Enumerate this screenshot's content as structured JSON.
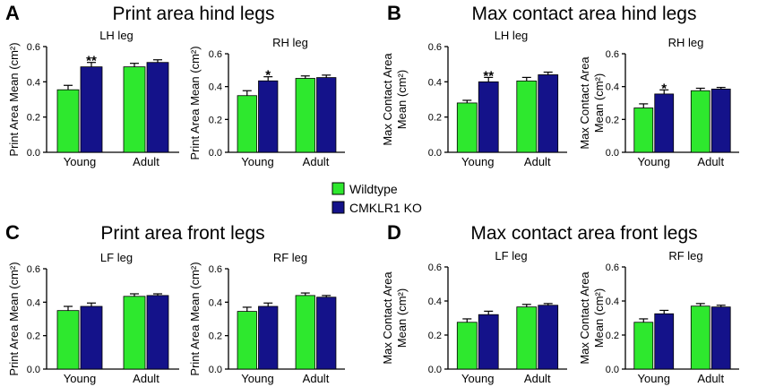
{
  "colors": {
    "wildtype": "#2EE82E",
    "ko": "#14128A"
  },
  "legend": [
    {
      "name": "Wildtype",
      "color": "#2EE82E"
    },
    {
      "name": "CMKLR1 KO",
      "color": "#14128A"
    }
  ],
  "panels": [
    {
      "letter": "A",
      "title": "Print area hind legs"
    },
    {
      "letter": "B",
      "title": "Max contact area hind legs"
    },
    {
      "letter": "C",
      "title": "Print area front legs"
    },
    {
      "letter": "D",
      "title": "Max contact area front legs"
    }
  ],
  "chart_data": [
    {
      "type": "bar",
      "panel": "A",
      "title": "LH leg",
      "ylabel": [
        "Print Area Mean (cm²)"
      ],
      "categories": [
        "Young",
        "Adult"
      ],
      "ylim": [
        0,
        0.6
      ],
      "yticks": [
        "0.0",
        "0.2",
        "0.4",
        "0.6"
      ],
      "series": [
        {
          "name": "Wildtype",
          "values": [
            0.355,
            0.485
          ],
          "errors": [
            0.025,
            0.02
          ]
        },
        {
          "name": "CMKLR1 KO",
          "values": [
            0.485,
            0.51
          ],
          "errors": [
            0.025,
            0.015
          ]
        }
      ],
      "annotations": [
        {
          "category": "Young",
          "series": "CMKLR1 KO",
          "text": "**"
        }
      ]
    },
    {
      "type": "bar",
      "panel": "A",
      "title": "RH leg",
      "ylabel": [
        "Print Area Mean (cm²)"
      ],
      "categories": [
        "Young",
        "Adult"
      ],
      "ylim": [
        0,
        0.6
      ],
      "yticks": [
        "0.0",
        "0.2",
        "0.4",
        "0.6"
      ],
      "series": [
        {
          "name": "Wildtype",
          "values": [
            0.345,
            0.45
          ],
          "errors": [
            0.03,
            0.015
          ]
        },
        {
          "name": "CMKLR1 KO",
          "values": [
            0.435,
            0.455
          ],
          "errors": [
            0.025,
            0.015
          ]
        }
      ],
      "annotations": [
        {
          "category": "Young",
          "series": "CMKLR1 KO",
          "text": "*"
        }
      ]
    },
    {
      "type": "bar",
      "panel": "B",
      "title": "LH leg",
      "ylabel": [
        "Max Contact Area",
        "Mean (cm²)"
      ],
      "categories": [
        "Young",
        "Adult"
      ],
      "ylim": [
        0,
        0.6
      ],
      "yticks": [
        "0.0",
        "0.2",
        "0.4",
        "0.6"
      ],
      "series": [
        {
          "name": "Wildtype",
          "values": [
            0.28,
            0.405
          ],
          "errors": [
            0.015,
            0.02
          ]
        },
        {
          "name": "CMKLR1 KO",
          "values": [
            0.4,
            0.44
          ],
          "errors": [
            0.025,
            0.015
          ]
        }
      ],
      "annotations": [
        {
          "category": "Young",
          "series": "CMKLR1 KO",
          "text": "**"
        }
      ]
    },
    {
      "type": "bar",
      "panel": "B",
      "title": "RH leg",
      "ylabel": [
        "Max Contact Area",
        "Mean (cm²)"
      ],
      "categories": [
        "Young",
        "Adult"
      ],
      "ylim": [
        0,
        0.6
      ],
      "yticks": [
        "0.0",
        "0.2",
        "0.4",
        "0.6"
      ],
      "series": [
        {
          "name": "Wildtype",
          "values": [
            0.27,
            0.375
          ],
          "errors": [
            0.025,
            0.015
          ]
        },
        {
          "name": "CMKLR1 KO",
          "values": [
            0.355,
            0.385
          ],
          "errors": [
            0.025,
            0.01
          ]
        }
      ],
      "annotations": [
        {
          "category": "Young",
          "series": "CMKLR1 KO",
          "text": "*"
        }
      ]
    },
    {
      "type": "bar",
      "panel": "C",
      "title": "LF leg",
      "ylabel": [
        "Print Area Mean (cm²)"
      ],
      "categories": [
        "Young",
        "Adult"
      ],
      "ylim": [
        0,
        0.6
      ],
      "yticks": [
        "0.0",
        "0.2",
        "0.4",
        "0.6"
      ],
      "series": [
        {
          "name": "Wildtype",
          "values": [
            0.35,
            0.435
          ],
          "errors": [
            0.025,
            0.015
          ]
        },
        {
          "name": "CMKLR1 KO",
          "values": [
            0.375,
            0.44
          ],
          "errors": [
            0.02,
            0.01
          ]
        }
      ],
      "annotations": []
    },
    {
      "type": "bar",
      "panel": "C",
      "title": "RF leg",
      "ylabel": [
        "Print Area Mean (cm²)"
      ],
      "categories": [
        "Young",
        "Adult"
      ],
      "ylim": [
        0,
        0.6
      ],
      "yticks": [
        "0.0",
        "0.2",
        "0.4",
        "0.6"
      ],
      "series": [
        {
          "name": "Wildtype",
          "values": [
            0.345,
            0.44
          ],
          "errors": [
            0.025,
            0.015
          ]
        },
        {
          "name": "CMKLR1 KO",
          "values": [
            0.375,
            0.43
          ],
          "errors": [
            0.02,
            0.01
          ]
        }
      ],
      "annotations": []
    },
    {
      "type": "bar",
      "panel": "D",
      "title": "LF leg",
      "ylabel": [
        "Max Contact Area",
        "Mean (cm²)"
      ],
      "categories": [
        "Young",
        "Adult"
      ],
      "ylim": [
        0,
        0.6
      ],
      "yticks": [
        "0.0",
        "0.2",
        "0.4",
        "0.6"
      ],
      "series": [
        {
          "name": "Wildtype",
          "values": [
            0.275,
            0.365
          ],
          "errors": [
            0.02,
            0.015
          ]
        },
        {
          "name": "CMKLR1 KO",
          "values": [
            0.32,
            0.375
          ],
          "errors": [
            0.02,
            0.01
          ]
        }
      ],
      "annotations": []
    },
    {
      "type": "bar",
      "panel": "D",
      "title": "RF leg",
      "ylabel": [
        "Max Contact Area",
        "Mean (cm²)"
      ],
      "categories": [
        "Young",
        "Adult"
      ],
      "ylim": [
        0,
        0.6
      ],
      "yticks": [
        "0.0",
        "0.2",
        "0.4",
        "0.6"
      ],
      "series": [
        {
          "name": "Wildtype",
          "values": [
            0.275,
            0.37
          ],
          "errors": [
            0.02,
            0.015
          ]
        },
        {
          "name": "CMKLR1 KO",
          "values": [
            0.325,
            0.365
          ],
          "errors": [
            0.02,
            0.01
          ]
        }
      ],
      "annotations": []
    }
  ]
}
